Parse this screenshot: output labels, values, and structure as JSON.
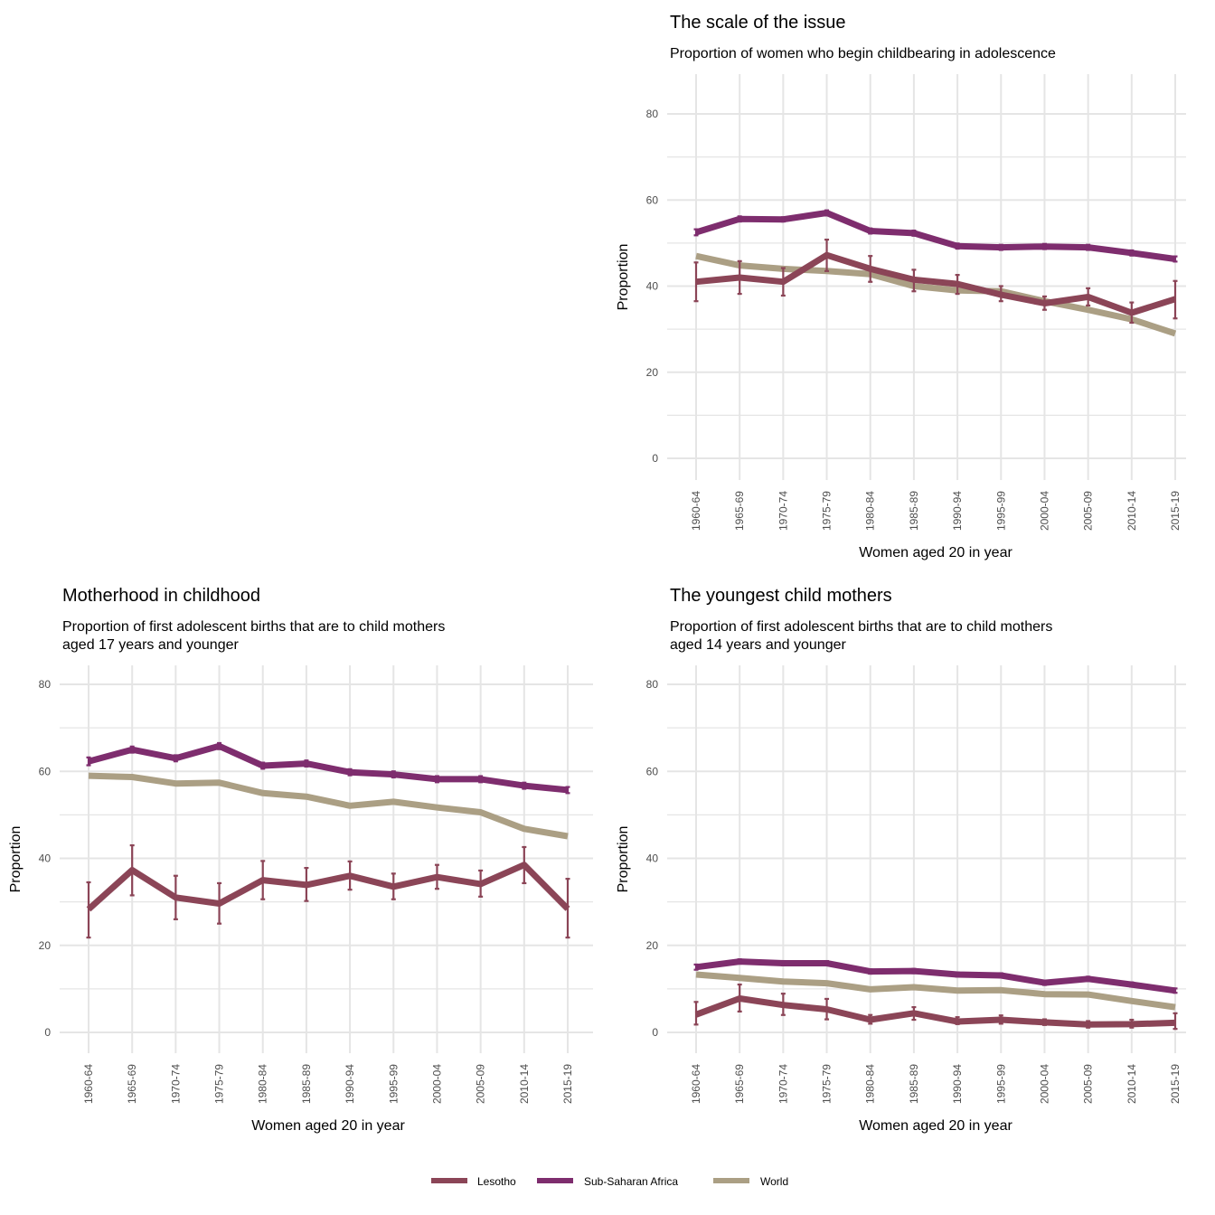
{
  "chart_data": [
    {
      "type": "line",
      "title": "The scale of the issue",
      "subtitle": [
        "Proportion of women who begin childbearing in adolescence"
      ],
      "xlabel": "Women aged 20 in year",
      "ylabel": "Proportion",
      "categories": [
        "1960-64",
        "1965-69",
        "1970-74",
        "1975-79",
        "1980-84",
        "1985-89",
        "1990-94",
        "1995-99",
        "2000-04",
        "2005-09",
        "2010-14",
        "2015-19"
      ],
      "ylim": [
        0,
        90
      ],
      "yticks": [
        0,
        20,
        40,
        60,
        80
      ],
      "grid": true,
      "series": [
        {
          "name": "World",
          "values": [
            47,
            44.8,
            44,
            43.5,
            42.8,
            40,
            39,
            38.8,
            36.5,
            34.5,
            32.3,
            29
          ]
        },
        {
          "name": "Sub-Saharan Africa",
          "values": [
            52.5,
            55.6,
            55.5,
            57,
            52.8,
            52.3,
            49.3,
            49,
            49.2,
            49,
            47.7,
            46.3
          ],
          "err_low": [
            51.8,
            55,
            55,
            56.4,
            52.2,
            51.7,
            48.7,
            48.4,
            48.6,
            48.4,
            47.1,
            45.7
          ],
          "err_high": [
            53.2,
            56.2,
            56,
            57.6,
            53.4,
            52.9,
            49.9,
            49.6,
            49.8,
            49.6,
            48.3,
            46.9
          ]
        },
        {
          "name": "Lesotho",
          "values": [
            41,
            42,
            41,
            47.2,
            44,
            41.5,
            40.5,
            38,
            36,
            37.5,
            33.8,
            37
          ],
          "err_low": [
            36.5,
            38.2,
            37.8,
            43.5,
            41,
            38.8,
            38.2,
            36.5,
            34.5,
            35.5,
            31.5,
            32.5
          ],
          "err_high": [
            45.5,
            45.8,
            44.2,
            50.8,
            47,
            43.8,
            42.6,
            40,
            37.6,
            39.5,
            36.2,
            41.2
          ]
        }
      ]
    },
    {
      "type": "line",
      "title": "Motherhood in childhood",
      "subtitle": [
        "Proportion of first adolescent births that are to child mothers",
        "aged 17 years and younger"
      ],
      "xlabel": "Women aged 20 in year",
      "ylabel": "Proportion",
      "categories": [
        "1960-64",
        "1965-69",
        "1970-74",
        "1975-79",
        "1980-84",
        "1985-89",
        "1990-94",
        "1995-99",
        "2000-04",
        "2005-09",
        "2010-14",
        "2015-19"
      ],
      "ylim": [
        -2,
        84
      ],
      "yticks": [
        0,
        20,
        40,
        60,
        80
      ],
      "grid": true,
      "series": [
        {
          "name": "World",
          "values": [
            59,
            58.7,
            57.2,
            57.4,
            55,
            54.2,
            52.1,
            53,
            51.7,
            50.6,
            46.8,
            45.1
          ]
        },
        {
          "name": "Sub-Saharan Africa",
          "values": [
            62.3,
            65,
            63,
            65.8,
            61.3,
            61.8,
            59.8,
            59.3,
            58.2,
            58.2,
            56.7,
            55.7
          ],
          "err_low": [
            61.4,
            64.3,
            62.3,
            65.1,
            60.6,
            61.1,
            59.1,
            58.6,
            57.5,
            57.5,
            56,
            55
          ],
          "err_high": [
            63.2,
            65.7,
            63.7,
            66.5,
            62,
            62.5,
            60.5,
            60,
            58.9,
            58.9,
            57.4,
            56.4
          ]
        },
        {
          "name": "Lesotho",
          "values": [
            28.3,
            37.3,
            31,
            29.6,
            35,
            33.9,
            36,
            33.5,
            35.7,
            34.1,
            38.5,
            28.4
          ],
          "err_low": [
            21.8,
            31.5,
            26,
            25,
            30.6,
            30.2,
            32.8,
            30.6,
            33,
            31.2,
            34.3,
            21.8
          ],
          "err_high": [
            34.5,
            43,
            36,
            34.3,
            39.4,
            37.8,
            39.3,
            36.5,
            38.5,
            37.2,
            42.6,
            35.3
          ]
        }
      ]
    },
    {
      "type": "line",
      "title": "The youngest child mothers",
      "subtitle": [
        "Proportion of first adolescent births that are to child mothers",
        "aged 14 years and younger"
      ],
      "xlabel": "Women aged 20 in year",
      "ylabel": "Proportion",
      "categories": [
        "1960-64",
        "1965-69",
        "1970-74",
        "1975-79",
        "1980-84",
        "1985-89",
        "1990-94",
        "1995-99",
        "2000-04",
        "2005-09",
        "2010-14",
        "2015-19"
      ],
      "ylim": [
        -2,
        84
      ],
      "yticks": [
        0,
        20,
        40,
        60,
        80
      ],
      "grid": true,
      "series": [
        {
          "name": "World",
          "values": [
            13.3,
            12.5,
            11.7,
            11.3,
            9.9,
            10.4,
            9.6,
            9.7,
            8.8,
            8.7,
            7.2,
            5.8
          ]
        },
        {
          "name": "Sub-Saharan Africa",
          "values": [
            15,
            16.3,
            15.9,
            15.9,
            14,
            14.1,
            13.3,
            13.1,
            11.4,
            12.3,
            11,
            9.6
          ],
          "err_low": [
            14.4,
            15.8,
            15.4,
            15.4,
            13.5,
            13.6,
            12.8,
            12.6,
            10.9,
            11.8,
            10.5,
            9.1
          ],
          "err_high": [
            15.6,
            16.8,
            16.4,
            16.4,
            14.5,
            14.6,
            13.8,
            13.6,
            11.9,
            12.8,
            11.5,
            10.1
          ]
        },
        {
          "name": "Lesotho",
          "values": [
            4.1,
            7.8,
            6.3,
            5.3,
            2.9,
            4.4,
            2.5,
            2.9,
            2.3,
            1.8,
            1.9,
            2.2
          ],
          "err_low": [
            1.8,
            4.8,
            4,
            3,
            2,
            2.9,
            1.9,
            2,
            1.7,
            1.1,
            1.1,
            0.8
          ],
          "err_high": [
            7,
            11,
            8.9,
            7.7,
            4,
            5.8,
            3.5,
            3.9,
            3,
            2.6,
            2.9,
            4.4
          ]
        }
      ]
    }
  ],
  "legend": {
    "position": "bottom",
    "items": [
      {
        "label": "Lesotho",
        "color": "#8b4557"
      },
      {
        "label": "Sub-Saharan Africa",
        "color": "#7e2d6e"
      },
      {
        "label": "World",
        "color": "#ab9f84"
      }
    ]
  },
  "colors": {
    "Lesotho": "#8b4557",
    "Sub-Saharan Africa": "#7e2d6e",
    "World": "#ab9f84",
    "grid": "#e5e5e5"
  }
}
